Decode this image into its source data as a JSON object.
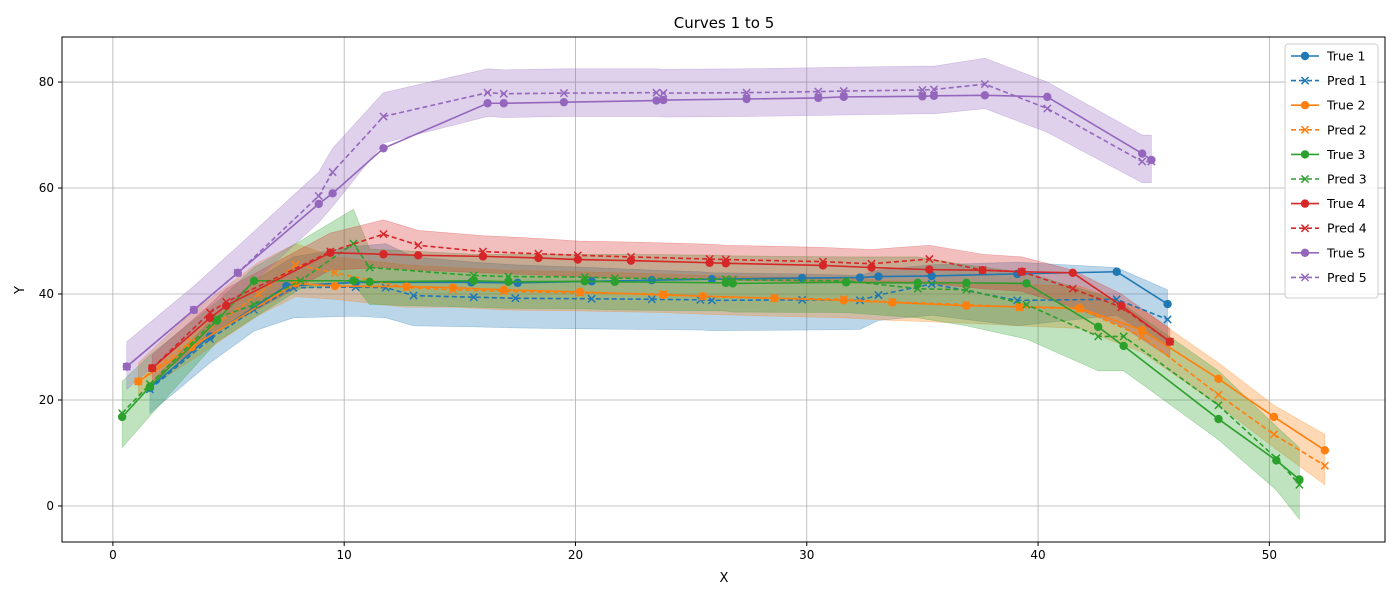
{
  "chart_data": {
    "type": "line",
    "title": "Curves 1 to 5",
    "xlabel": "X",
    "ylabel": "Y",
    "xlim": [
      -2.2,
      55
    ],
    "ylim": [
      -6.8,
      88.5
    ],
    "xticks": [
      0,
      10,
      20,
      30,
      40,
      50
    ],
    "yticks": [
      0,
      20,
      40,
      60,
      80
    ],
    "grid": true,
    "legend_position": "top-right",
    "series": [
      {
        "name": "True 1",
        "pred_name": "Pred 1",
        "color": "#1f77b4",
        "true_x": [
          1.6,
          4.2,
          7.5,
          10.5,
          15.5,
          17.5,
          20.7,
          23.3,
          25.9,
          29.8,
          32.3,
          33.1,
          35.4,
          39.1,
          43.4,
          45.6
        ],
        "true_y": [
          22.3,
          32.0,
          41.5,
          42.2,
          42.2,
          42.1,
          42.4,
          42.6,
          42.8,
          43.0,
          43.1,
          43.3,
          43.4,
          43.8,
          44.2,
          38.1
        ],
        "pred_x": [
          1.6,
          4.2,
          6.1,
          7.8,
          10.5,
          11.8,
          13.0,
          15.6,
          17.4,
          20.7,
          23.3,
          25.4,
          25.9,
          29.8,
          32.3,
          33.1,
          35.4,
          39.1,
          43.4,
          45.6
        ],
        "pred_y": [
          22.0,
          31.5,
          37.0,
          41.2,
          41.3,
          41.2,
          39.7,
          39.4,
          39.2,
          39.1,
          39.0,
          38.9,
          38.8,
          38.9,
          38.8,
          39.8,
          41.9,
          38.8,
          39.0,
          35.2
        ],
        "band_upper": [
          23.0,
          35.0,
          42.5,
          47.0,
          49.0,
          49.5,
          47.0,
          46.0,
          45.5,
          45.0,
          44.5,
          44.2,
          44.0,
          43.8,
          43.5,
          44.5,
          45.5,
          46.0,
          45.0,
          40.8
        ],
        "band_lower": [
          17.5,
          27.0,
          33.0,
          35.5,
          35.8,
          35.5,
          34.0,
          33.8,
          33.6,
          33.4,
          33.3,
          33.2,
          33.1,
          33.2,
          33.3,
          35.0,
          36.0,
          34.0,
          36.0,
          30.0
        ]
      },
      {
        "name": "True 2",
        "pred_name": "Pred 2",
        "color": "#ff7f0e",
        "true_x": [
          1.1,
          3.4,
          7.9,
          9.6,
          12.7,
          14.7,
          16.9,
          20.2,
          23.8,
          25.5,
          28.6,
          31.6,
          33.7,
          36.9,
          39.2,
          41.8,
          44.5,
          47.8,
          50.2,
          52.4
        ],
        "true_y": [
          23.5,
          30.0,
          42.0,
          41.5,
          41.4,
          41.2,
          40.8,
          40.4,
          39.8,
          39.6,
          39.2,
          38.8,
          38.4,
          37.8,
          37.6,
          37.3,
          33.2,
          24.0,
          16.8,
          10.5
        ],
        "pred_x": [
          1.1,
          3.4,
          6.3,
          7.9,
          9.6,
          12.7,
          14.7,
          16.9,
          20.2,
          23.8,
          25.5,
          28.6,
          31.6,
          33.7,
          36.9,
          39.2,
          41.8,
          44.5,
          47.8,
          50.2,
          52.4
        ],
        "pred_y": [
          23.5,
          31.0,
          40.0,
          45.5,
          44.0,
          41.2,
          40.8,
          40.5,
          40.2,
          40.0,
          39.5,
          39.2,
          39.0,
          38.5,
          38.0,
          37.5,
          37.2,
          32.0,
          21.0,
          13.5,
          7.6
        ],
        "band_upper": [
          27.0,
          36.5,
          46.0,
          49.5,
          47.0,
          45.5,
          45.0,
          44.5,
          44.2,
          43.8,
          43.5,
          43.2,
          43.0,
          42.5,
          42.2,
          41.8,
          41.5,
          37.0,
          27.0,
          19.0,
          13.5
        ],
        "band_lower": [
          21.0,
          27.5,
          36.0,
          39.5,
          39.0,
          37.5,
          37.5,
          37.0,
          36.8,
          36.5,
          36.2,
          35.8,
          35.5,
          35.0,
          34.5,
          34.0,
          33.5,
          29.0,
          19.0,
          11.0,
          4.0
        ]
      },
      {
        "name": "True 3",
        "pred_name": "Pred 3",
        "color": "#2ca02c",
        "true_x": [
          0.4,
          1.6,
          4.5,
          6.1,
          10.4,
          11.1,
          15.6,
          17.1,
          20.4,
          21.7,
          26.5,
          26.8,
          31.7,
          34.8,
          36.9,
          39.5,
          42.6,
          43.7,
          47.8,
          50.3,
          51.3
        ],
        "true_y": [
          16.8,
          22.5,
          35.0,
          42.5,
          42.5,
          42.3,
          42.5,
          42.3,
          42.4,
          42.3,
          42.1,
          42.0,
          42.2,
          42.1,
          42.1,
          42.0,
          33.8,
          30.2,
          16.4,
          8.6,
          5.0
        ],
        "pred_x": [
          0.4,
          1.6,
          4.5,
          6.1,
          8.1,
          10.4,
          11.1,
          15.6,
          17.1,
          20.4,
          21.7,
          26.5,
          26.8,
          31.7,
          34.8,
          36.9,
          39.5,
          42.6,
          43.7,
          47.8,
          50.3,
          51.3
        ],
        "pred_y": [
          17.5,
          23.0,
          35.5,
          38.0,
          42.5,
          49.5,
          45.0,
          43.5,
          43.3,
          43.2,
          43.0,
          42.8,
          42.7,
          42.5,
          41.0,
          40.8,
          38.0,
          32.0,
          32.0,
          19.0,
          9.0,
          4.0
        ],
        "band_upper": [
          23.5,
          28.5,
          38.5,
          45.0,
          50.0,
          56.0,
          48.5,
          47.5,
          47.5,
          47.5,
          47.5,
          47.3,
          47.2,
          47.0,
          47.0,
          45.5,
          44.0,
          40.0,
          38.0,
          25.5,
          15.0,
          11.0
        ],
        "band_lower": [
          11.0,
          17.0,
          31.0,
          35.5,
          41.0,
          42.0,
          38.0,
          37.5,
          37.3,
          37.2,
          37.0,
          36.8,
          36.6,
          36.5,
          35.5,
          34.0,
          31.5,
          25.5,
          25.5,
          12.5,
          3.0,
          -2.5
        ]
      },
      {
        "name": "True 4",
        "pred_name": "Pred 4",
        "color": "#d62728",
        "true_x": [
          1.7,
          4.2,
          4.9,
          9.4,
          11.7,
          13.2,
          16.0,
          18.4,
          20.1,
          22.4,
          25.8,
          26.5,
          30.7,
          32.8,
          35.3,
          37.6,
          39.3,
          41.5,
          43.6,
          45.7
        ],
        "true_y": [
          26.0,
          35.5,
          37.8,
          47.8,
          47.5,
          47.3,
          47.1,
          46.8,
          46.5,
          46.3,
          45.9,
          45.8,
          45.4,
          45.0,
          44.6,
          44.5,
          44.2,
          44.0,
          37.8,
          31.0
        ],
        "pred_x": [
          1.7,
          4.2,
          4.9,
          9.4,
          11.7,
          13.2,
          16.0,
          18.4,
          20.1,
          22.4,
          25.8,
          26.5,
          30.7,
          32.8,
          35.3,
          37.6,
          39.3,
          41.5,
          43.6,
          45.7
        ],
        "pred_y": [
          26.0,
          36.5,
          38.5,
          48.0,
          51.3,
          49.2,
          48.0,
          47.6,
          47.3,
          47.0,
          46.6,
          46.5,
          46.1,
          45.7,
          46.6,
          44.5,
          44.2,
          41.0,
          37.5,
          31.0
        ],
        "band_upper": [
          28.5,
          38.0,
          41.0,
          51.5,
          54.0,
          52.0,
          51.0,
          50.5,
          50.0,
          49.8,
          49.4,
          49.2,
          48.8,
          48.4,
          49.2,
          47.5,
          47.0,
          44.5,
          40.0,
          33.5
        ],
        "band_lower": [
          23.5,
          32.0,
          34.0,
          44.5,
          45.0,
          44.5,
          44.0,
          43.6,
          43.3,
          43.0,
          42.8,
          42.6,
          42.3,
          42.0,
          42.0,
          41.0,
          40.5,
          37.5,
          34.0,
          28.0
        ]
      },
      {
        "name": "True 5",
        "pred_name": "Pred 5",
        "color": "#9467bd",
        "true_x": [
          0.6,
          3.5,
          5.4,
          8.9,
          9.5,
          11.7,
          16.2,
          16.9,
          19.5,
          23.5,
          23.8,
          27.4,
          30.5,
          31.6,
          35.0,
          35.5,
          37.7,
          40.4,
          44.5,
          44.9
        ],
        "true_y": [
          26.3,
          37.0,
          44.0,
          57.0,
          59.0,
          67.5,
          76.0,
          76.0,
          76.2,
          76.5,
          76.6,
          76.8,
          77.0,
          77.2,
          77.3,
          77.4,
          77.5,
          77.2,
          66.5,
          65.3
        ],
        "pred_x": [
          0.6,
          3.5,
          5.4,
          8.9,
          9.5,
          11.7,
          16.2,
          16.9,
          19.5,
          23.5,
          23.8,
          27.4,
          30.5,
          31.6,
          35.0,
          35.5,
          37.7,
          40.4,
          44.5,
          44.9
        ],
        "pred_y": [
          26.3,
          37.0,
          44.0,
          58.5,
          63.0,
          73.5,
          78.0,
          77.8,
          77.9,
          78.0,
          77.9,
          78.0,
          78.2,
          78.3,
          78.5,
          78.6,
          79.6,
          75.0,
          65.0,
          65.0
        ],
        "band_upper": [
          31.0,
          41.5,
          49.0,
          63.0,
          67.5,
          78.0,
          82.5,
          82.3,
          82.5,
          82.5,
          82.4,
          82.5,
          82.7,
          82.8,
          83.0,
          83.0,
          84.5,
          80.0,
          70.0,
          70.0
        ],
        "band_lower": [
          22.0,
          33.0,
          39.5,
          53.5,
          56.5,
          68.5,
          73.5,
          73.3,
          73.5,
          73.5,
          73.4,
          73.5,
          73.7,
          73.8,
          74.0,
          74.0,
          75.0,
          70.5,
          61.0,
          61.0
        ]
      }
    ]
  }
}
